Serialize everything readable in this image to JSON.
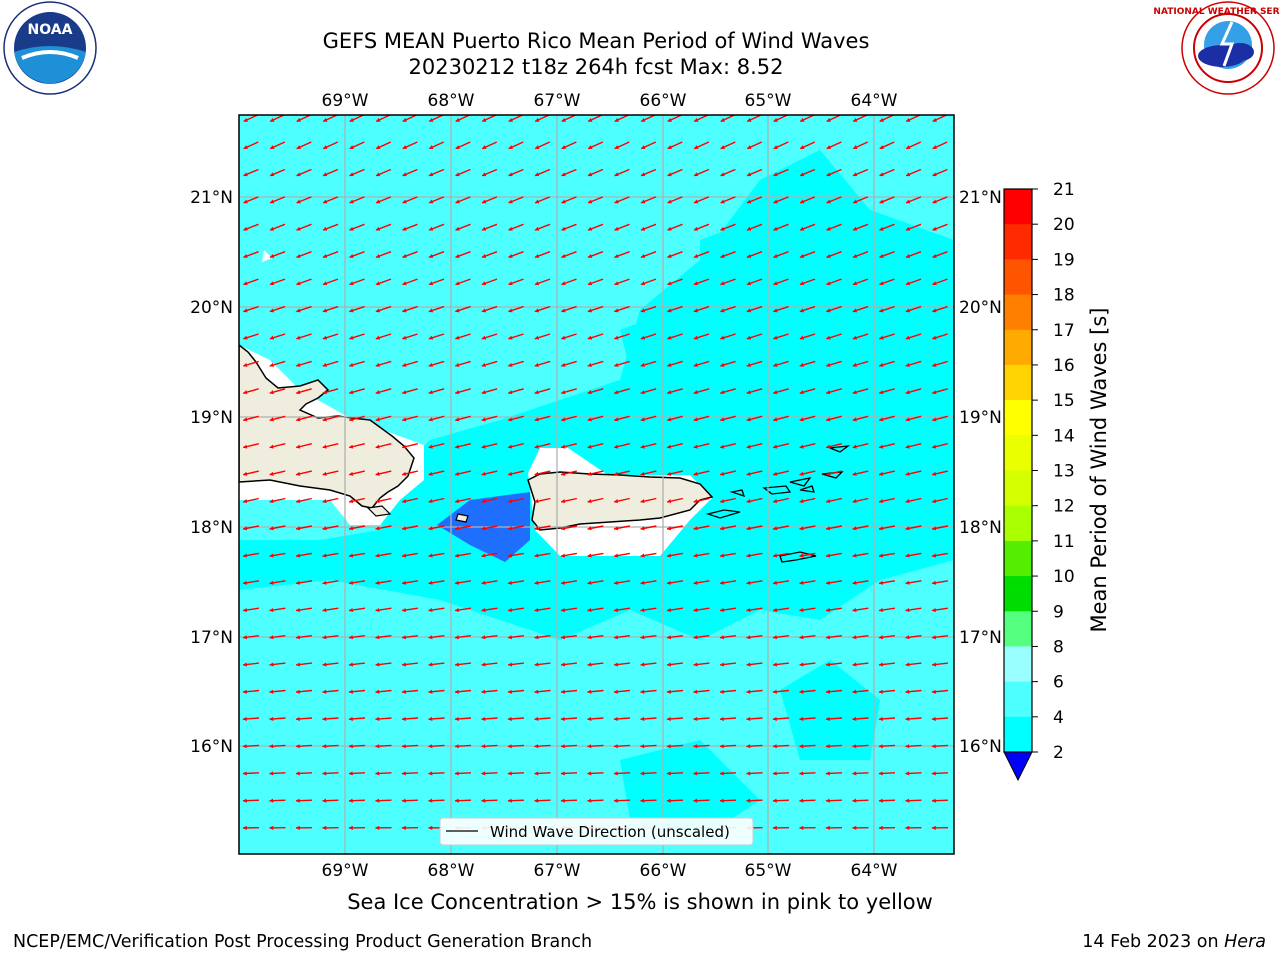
{
  "header": {
    "title_line1": "GEFS MEAN Puerto Rico Mean Period of Wind Waves",
    "title_line2": "20230212 t18z 264h fcst   Max: 8.52"
  },
  "logos": {
    "left": "NOAA",
    "left_ring_text": "NATIONAL OCEANIC AND ATMOSPHERIC ADMINISTRATION · U.S. DEPARTMENT OF COMMERCE",
    "right_ring_text": "NATIONAL WEATHER SERVICE"
  },
  "map": {
    "lon_labels": [
      "69°W",
      "68°W",
      "67°W",
      "66°W",
      "65°W",
      "64°W"
    ],
    "lat_labels": [
      "21°N",
      "20°N",
      "19°N",
      "18°N",
      "17°N",
      "16°N"
    ],
    "legend_label": "Wind Wave Direction (unscaled)",
    "field_colors": {
      "four_to_six": "#00ffff",
      "six_to_eight": "#4dffff",
      "two_to_four": "#1f6fff",
      "land": "#efedde",
      "arrow": "#ff0000"
    }
  },
  "colorbar": {
    "label": "Mean Period of Wind Waves [s]",
    "ticks": [
      "21",
      "20",
      "19",
      "18",
      "17",
      "16",
      "15",
      "14",
      "13",
      "12",
      "11",
      "10",
      "9",
      "8",
      "6",
      "4",
      "2"
    ],
    "colors": [
      "#ff0000",
      "#ff2a00",
      "#ff5500",
      "#ff7f00",
      "#ffaa00",
      "#ffd400",
      "#ffff00",
      "#eaff00",
      "#d4ff00",
      "#aaff00",
      "#55ee00",
      "#00dd00",
      "#55ff80",
      "#99ffff",
      "#4dffff",
      "#00ffff",
      "#1f6fff"
    ],
    "under_color": "#0000ff"
  },
  "notes": {
    "sea_ice": "Sea Ice Concentration > 15% is shown in pink to yellow",
    "branch": "NCEP/EMC/Verification Post Processing Product Generation Branch",
    "date": "14 Feb 2023 on ",
    "host": "Hera"
  }
}
